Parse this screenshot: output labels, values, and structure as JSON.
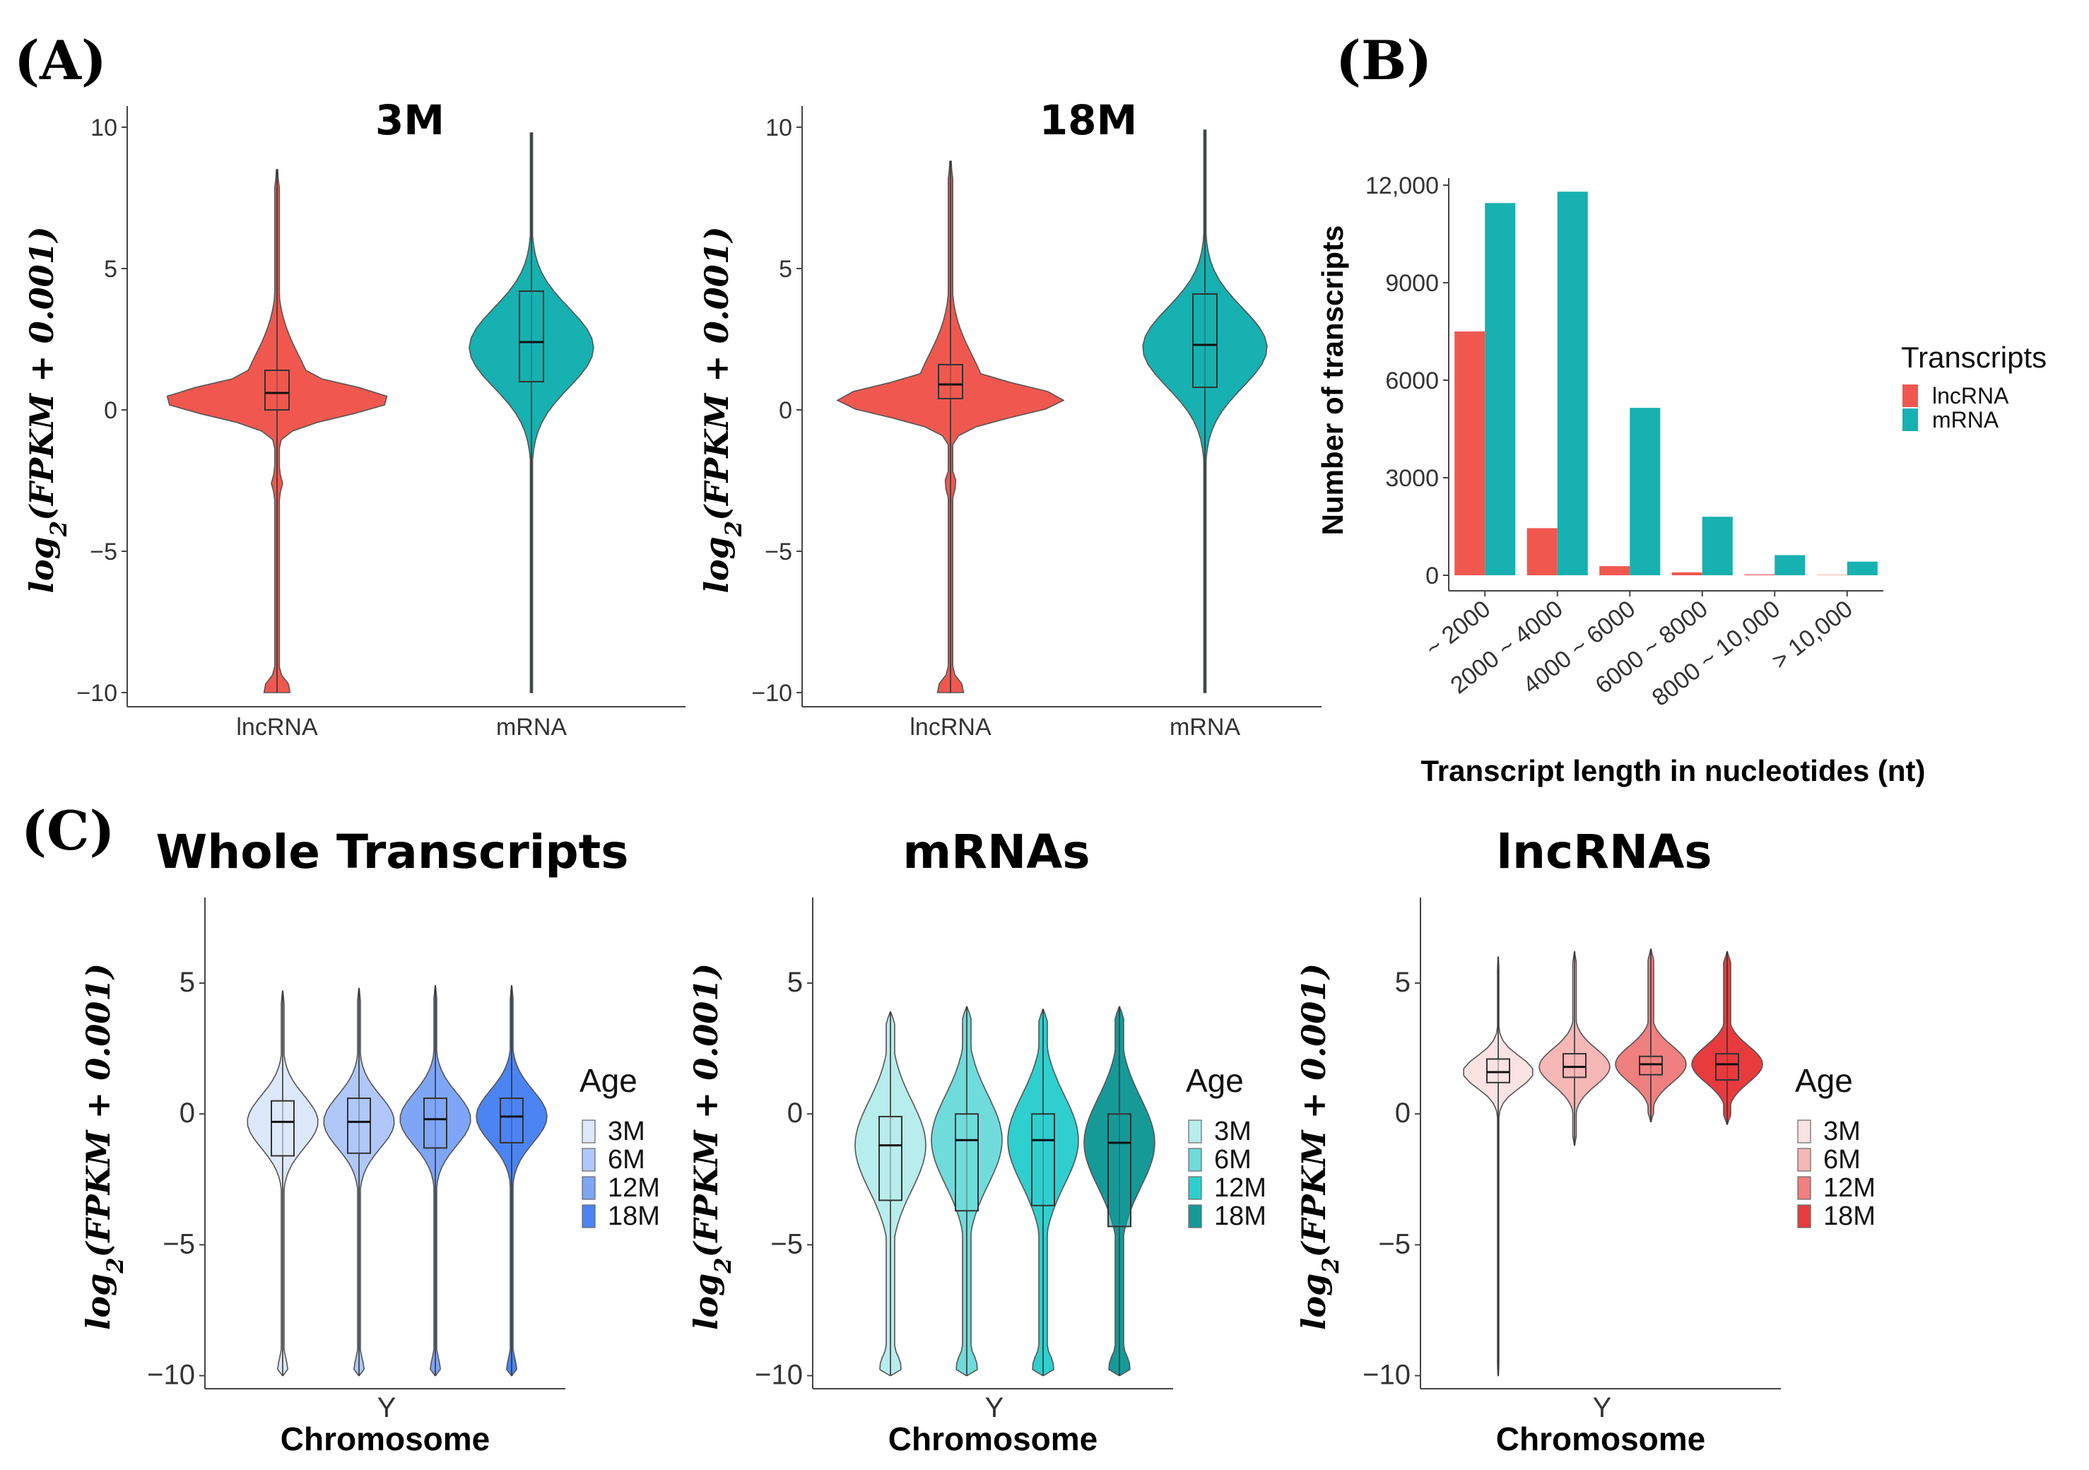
{
  "colors": {
    "lncRNA": "#F0584F",
    "mRNA": "#16B1B0",
    "whole": [
      "#DDE8FB",
      "#AFC8F9",
      "#7FA6F6",
      "#4C84F3"
    ],
    "mrnas": [
      "#B7EDEC",
      "#6FDCDB",
      "#2ECFCE",
      "#159A98"
    ],
    "lncrnas": [
      "#FBE3E3",
      "#F6B7B7",
      "#F07F7F",
      "#E83B3E"
    ]
  },
  "panel_labels": {
    "a": "(A)",
    "b": "(B)",
    "c": "(C)"
  },
  "chart_data": [
    {
      "id": "A-3M",
      "type": "violin",
      "title": "3M",
      "ylabel": "log2(FPKM + 0.001)",
      "ylim": [
        -10.5,
        10.5
      ],
      "yticks": [
        "10",
        "5",
        "0",
        "-5",
        "-10"
      ],
      "categories": [
        "lncRNA",
        "mRNA"
      ],
      "series": [
        {
          "name": "lncRNA",
          "median": 0.6,
          "q1": 0.0,
          "q3": 1.4,
          "min": -10,
          "max": 8.5
        },
        {
          "name": "mRNA",
          "median": 2.4,
          "q1": 1.0,
          "q3": 4.2,
          "min": -10,
          "max": 9.8
        }
      ]
    },
    {
      "id": "A-18M",
      "type": "violin",
      "title": "18M",
      "ylabel": "log2(FPKM + 0.001)",
      "ylim": [
        -10.5,
        10.5
      ],
      "yticks": [
        "10",
        "5",
        "0",
        "-5",
        "-10"
      ],
      "categories": [
        "lncRNA",
        "mRNA"
      ],
      "series": [
        {
          "name": "lncRNA",
          "median": 0.9,
          "q1": 0.4,
          "q3": 1.6,
          "min": -10,
          "max": 8.8
        },
        {
          "name": "mRNA",
          "median": 2.3,
          "q1": 0.8,
          "q3": 4.1,
          "min": -10,
          "max": 9.9
        }
      ]
    },
    {
      "id": "B",
      "type": "bar",
      "title": "",
      "xlabel": "Transcript length in nucleotides (nt)",
      "ylabel": "Number of transcripts",
      "ylim": [
        0,
        12000
      ],
      "yticks": [
        "12,000",
        "9000",
        "6000",
        "3000",
        "0"
      ],
      "categories": [
        "~ 2000",
        "2000 ~ 4000",
        "4000 ~ 6000",
        "6000 ~ 8000",
        "8000 ~ 10,000",
        "> 10,000"
      ],
      "series": [
        {
          "name": "lncRNA",
          "values": [
            7500,
            1450,
            280,
            90,
            25,
            10
          ]
        },
        {
          "name": "mRNA",
          "values": [
            11450,
            11800,
            5150,
            1800,
            620,
            420
          ]
        }
      ],
      "legend": {
        "title": "Transcripts",
        "items": [
          "lncRNA",
          "mRNA"
        ],
        "position": "right"
      }
    },
    {
      "id": "C-whole",
      "type": "violin",
      "title": "Whole Transcripts",
      "xlabel": "Chromosome",
      "ylabel": "log2(FPKM + 0.001)",
      "ylim": [
        -10.5,
        8
      ],
      "yticks": [
        "5",
        "0",
        "-5",
        "-10"
      ],
      "categories": [
        "Y"
      ],
      "series": [
        {
          "name": "3M",
          "median": -0.3,
          "q1": -1.6,
          "q3": 0.5,
          "min": -10,
          "max": 4.7
        },
        {
          "name": "6M",
          "median": -0.3,
          "q1": -1.5,
          "q3": 0.6,
          "min": -10,
          "max": 4.8
        },
        {
          "name": "12M",
          "median": -0.2,
          "q1": -1.3,
          "q3": 0.6,
          "min": -10,
          "max": 4.9
        },
        {
          "name": "18M",
          "median": -0.1,
          "q1": -1.1,
          "q3": 0.6,
          "min": -10,
          "max": 4.9
        }
      ],
      "legend": {
        "title": "Age",
        "items": [
          "3M",
          "6M",
          "12M",
          "18M"
        ],
        "position": "right"
      }
    },
    {
      "id": "C-mrnas",
      "type": "violin",
      "title": "mRNAs",
      "xlabel": "Chromosome",
      "ylabel": "log2(FPKM + 0.001)",
      "ylim": [
        -10.5,
        8
      ],
      "yticks": [
        "5",
        "0",
        "-5",
        "-10"
      ],
      "categories": [
        "Y"
      ],
      "series": [
        {
          "name": "3M",
          "median": -1.2,
          "q1": -3.3,
          "q3": -0.1,
          "min": -10,
          "max": 3.9
        },
        {
          "name": "6M",
          "median": -1.0,
          "q1": -3.7,
          "q3": 0.0,
          "min": -10,
          "max": 4.1
        },
        {
          "name": "12M",
          "median": -1.0,
          "q1": -3.5,
          "q3": 0.0,
          "min": -10,
          "max": 4.0
        },
        {
          "name": "18M",
          "median": -1.1,
          "q1": -4.3,
          "q3": 0.0,
          "min": -10,
          "max": 4.1
        }
      ],
      "legend": {
        "title": "Age",
        "items": [
          "3M",
          "6M",
          "12M",
          "18M"
        ],
        "position": "right"
      }
    },
    {
      "id": "C-lncrnas",
      "type": "violin",
      "title": "lncRNAs",
      "xlabel": "Chromosome",
      "ylabel": "log2(FPKM + 0.001)",
      "ylim": [
        -10.5,
        8
      ],
      "yticks": [
        "5",
        "0",
        "-5",
        "-10"
      ],
      "categories": [
        "Y"
      ],
      "series": [
        {
          "name": "3M",
          "median": 1.6,
          "q1": 1.2,
          "q3": 2.1,
          "min": -10,
          "max": 6.0
        },
        {
          "name": "6M",
          "median": 1.8,
          "q1": 1.4,
          "q3": 2.3,
          "min": -1.2,
          "max": 6.2
        },
        {
          "name": "12M",
          "median": 1.9,
          "q1": 1.5,
          "q3": 2.2,
          "min": -0.3,
          "max": 6.3
        },
        {
          "name": "18M",
          "median": 1.9,
          "q1": 1.3,
          "q3": 2.3,
          "min": -0.4,
          "max": 6.2
        }
      ],
      "legend": {
        "title": "Age",
        "items": [
          "3M",
          "6M",
          "12M",
          "18M"
        ],
        "position": "right"
      }
    }
  ]
}
